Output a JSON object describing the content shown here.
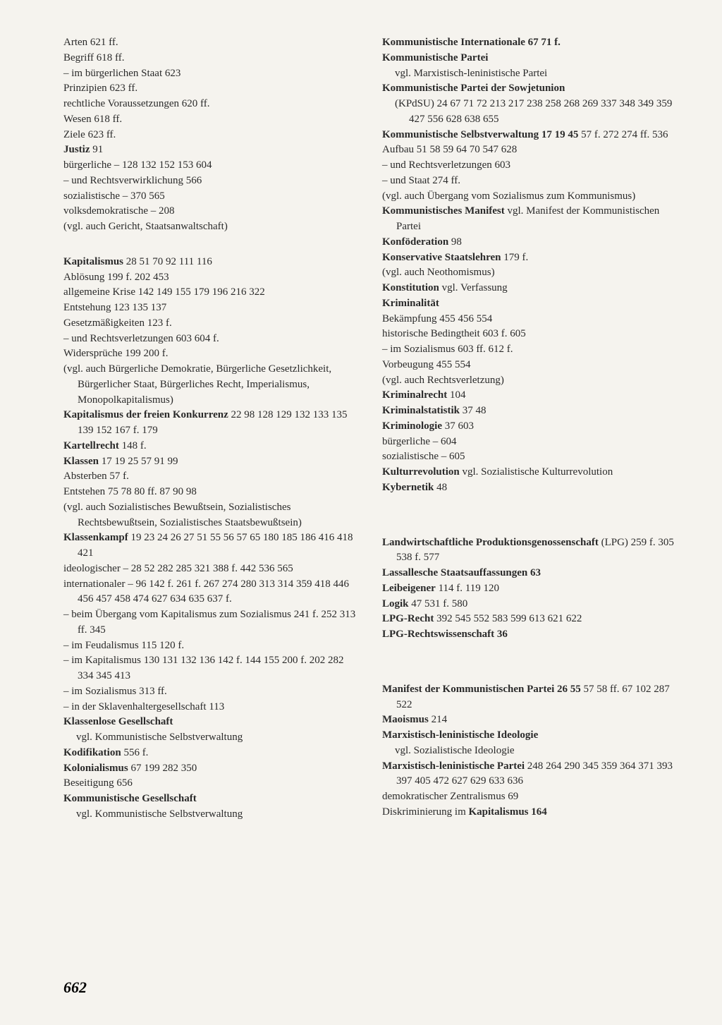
{
  "pageNumber": "662",
  "leftColumn": [
    {
      "type": "entry",
      "parts": [
        {
          "t": "Arten   621 ff."
        }
      ]
    },
    {
      "type": "entry",
      "parts": [
        {
          "t": "Begriff   618 ff."
        }
      ]
    },
    {
      "type": "entry",
      "parts": [
        {
          "t": "–  im bürgerlichen Staat   623"
        }
      ]
    },
    {
      "type": "entry",
      "parts": [
        {
          "t": "Prinzipien   623 ff."
        }
      ]
    },
    {
      "type": "entry",
      "parts": [
        {
          "t": "rechtliche Voraussetzungen   620 ff."
        }
      ]
    },
    {
      "type": "entry",
      "parts": [
        {
          "t": "Wesen   618 ff."
        }
      ]
    },
    {
      "type": "entry",
      "parts": [
        {
          "t": "Ziele   623 ff."
        }
      ]
    },
    {
      "type": "entry",
      "parts": [
        {
          "t": "Justiz",
          "b": true
        },
        {
          "t": "   91"
        }
      ]
    },
    {
      "type": "entry",
      "parts": [
        {
          "t": "bürgerliche  –   128 132 152 153 604"
        }
      ]
    },
    {
      "type": "entry",
      "parts": [
        {
          "t": "–  und Rechtsverwirklichung   566"
        }
      ]
    },
    {
      "type": "entry",
      "parts": [
        {
          "t": "sozialistische –   370 565"
        }
      ]
    },
    {
      "type": "entry",
      "parts": [
        {
          "t": "volksdemokratische –    208"
        }
      ]
    },
    {
      "type": "entry",
      "parts": [
        {
          "t": "(vgl. auch Gericht, Staatsanwaltschaft)"
        }
      ]
    },
    {
      "type": "gap"
    },
    {
      "type": "entry",
      "parts": [
        {
          "t": "Kapitalismus",
          "b": true
        },
        {
          "t": "   28 51 70 92 111 116"
        }
      ]
    },
    {
      "type": "entry",
      "parts": [
        {
          "t": "Ablösung   199 f. 202 453"
        }
      ]
    },
    {
      "type": "entry",
      "parts": [
        {
          "t": "allgemeine Krise   142 149 155 179 196 216 322"
        }
      ]
    },
    {
      "type": "entry",
      "parts": [
        {
          "t": "Entstehung   123 135 137"
        }
      ]
    },
    {
      "type": "entry",
      "parts": [
        {
          "t": "Gesetzmäßigkeiten   123 f."
        }
      ]
    },
    {
      "type": "entry",
      "parts": [
        {
          "t": "–  und Rechtsverletzungen   603 604 f."
        }
      ]
    },
    {
      "type": "entry",
      "parts": [
        {
          "t": "Widersprüche   199 200 f."
        }
      ]
    },
    {
      "type": "entry",
      "parts": [
        {
          "t": "(vgl. auch Bürgerliche Demokratie, Bürgerliche Gesetzlichkeit, Bürgerlicher Staat, Bürgerliches Recht, Imperialismus, Monopolkapitalismus)"
        }
      ]
    },
    {
      "type": "entry",
      "parts": [
        {
          "t": "Kapitalismus der freien Konkurrenz",
          "b": true
        },
        {
          "t": "   22 98 128 129 132 133 135 139 152 167 f. 179"
        }
      ]
    },
    {
      "type": "entry",
      "parts": [
        {
          "t": "Kartellrecht",
          "b": true
        },
        {
          "t": "   148 f."
        }
      ]
    },
    {
      "type": "entry",
      "parts": [
        {
          "t": "Klassen",
          "b": true
        },
        {
          "t": "   17 19 25 57 91 99"
        }
      ]
    },
    {
      "type": "entry",
      "parts": [
        {
          "t": "Absterben   57 f."
        }
      ]
    },
    {
      "type": "entry",
      "parts": [
        {
          "t": "Entstehen   75 78 80 ff. 87 90 98"
        }
      ]
    },
    {
      "type": "entry",
      "parts": [
        {
          "t": "(vgl. auch Sozialistisches Bewußtsein, Sozialistisches Rechtsbewußtsein, Sozialistisches Staatsbewußtsein)"
        }
      ]
    },
    {
      "type": "entry",
      "parts": [
        {
          "t": "Klassenkampf",
          "b": true
        },
        {
          "t": "   19 23 24 26 27 51 55 56 57 65 180 185 186 416 418 421"
        }
      ]
    },
    {
      "type": "entry",
      "parts": [
        {
          "t": "ideologischer –   28 52 282 285 321 388 f. 442 536 565"
        }
      ]
    },
    {
      "type": "entry",
      "parts": [
        {
          "t": "internationaler –   96 142 f. 261 f. 267 274 280 313 314 359 418 446 456 457 458 474 627 634 635 637 f."
        }
      ]
    },
    {
      "type": "entry",
      "parts": [
        {
          "t": "–  beim Übergang vom Kapitalismus zum Sozialismus   241 f. 252 313 ff. 345"
        }
      ]
    },
    {
      "type": "entry",
      "parts": [
        {
          "t": "–  im Feudalismus   115 120 f."
        }
      ]
    },
    {
      "type": "entry",
      "parts": [
        {
          "t": "–  im Kapitalismus   130 131 132 136 142 f. 144 155 200 f. 202 282 334 345 413"
        }
      ]
    },
    {
      "type": "entry",
      "parts": [
        {
          "t": "–  im Sozialismus   313 ff."
        }
      ]
    },
    {
      "type": "entry",
      "parts": [
        {
          "t": "–  in der Sklavenhaltergesellschaft   113"
        }
      ]
    },
    {
      "type": "entry",
      "parts": [
        {
          "t": "Klassenlose Gesellschaft",
          "b": true
        }
      ]
    },
    {
      "type": "sub",
      "parts": [
        {
          "t": "vgl. Kommunistische Selbstverwaltung"
        }
      ]
    },
    {
      "type": "entry",
      "parts": [
        {
          "t": "Kodifikation",
          "b": true
        },
        {
          "t": "   556 f."
        }
      ]
    },
    {
      "type": "entry",
      "parts": [
        {
          "t": "Kolonialismus",
          "b": true
        },
        {
          "t": "   67 199 282 350"
        }
      ]
    },
    {
      "type": "entry",
      "parts": [
        {
          "t": "Beseitigung   656"
        }
      ]
    },
    {
      "type": "entry",
      "parts": [
        {
          "t": "Kommunistische Gesellschaft",
          "b": true
        }
      ]
    },
    {
      "type": "sub",
      "parts": [
        {
          "t": "vgl. Kommunistische Selbstverwaltung"
        }
      ]
    }
  ],
  "rightColumn": [
    {
      "type": "entry",
      "parts": [
        {
          "t": "Kommunistische Internationale   67 71 f.",
          "b": true
        }
      ]
    },
    {
      "type": "entry",
      "parts": [
        {
          "t": "Kommunistische Partei",
          "b": true
        }
      ]
    },
    {
      "type": "sub",
      "parts": [
        {
          "t": "vgl. Marxistisch-leninistische Partei"
        }
      ]
    },
    {
      "type": "entry",
      "parts": [
        {
          "t": "Kommunistische Partei der Sowjetunion",
          "b": true
        }
      ]
    },
    {
      "type": "sub",
      "parts": [
        {
          "t": "(KPdSU)   24 67 71 72 213 217 238 258 268 269 337 348 349 359 427 556 628 638 655"
        }
      ]
    },
    {
      "type": "entry",
      "parts": [
        {
          "t": "Kommunistische Selbstverwaltung   17 19 45",
          "b": true
        },
        {
          "t": " 57 f. 272 274 ff. 536"
        }
      ]
    },
    {
      "type": "entry",
      "parts": [
        {
          "t": "Aufbau   51 58 59 64 70 547 628"
        }
      ]
    },
    {
      "type": "entry",
      "parts": [
        {
          "t": "–  und Rechtsverletzungen   603"
        }
      ]
    },
    {
      "type": "entry",
      "parts": [
        {
          "t": "–  und Staat   274 ff."
        }
      ]
    },
    {
      "type": "entry",
      "parts": [
        {
          "t": "(vgl. auch Übergang vom Sozialismus zum Kommunismus)"
        }
      ]
    },
    {
      "type": "entry",
      "parts": [
        {
          "t": "Kommunistisches Manifest",
          "b": true
        },
        {
          "t": " vgl. Manifest der Kommunistischen Partei"
        }
      ]
    },
    {
      "type": "entry",
      "parts": [
        {
          "t": "Konföderation",
          "b": true
        },
        {
          "t": "   98"
        }
      ]
    },
    {
      "type": "entry",
      "parts": [
        {
          "t": "Konservative Staatslehren",
          "b": true
        },
        {
          "t": "   179 f."
        }
      ]
    },
    {
      "type": "entry",
      "parts": [
        {
          "t": "(vgl. auch Neothomismus)"
        }
      ]
    },
    {
      "type": "entry",
      "parts": [
        {
          "t": "Konstitution",
          "b": true
        },
        {
          "t": " vgl. Verfassung"
        }
      ]
    },
    {
      "type": "entry",
      "parts": [
        {
          "t": "Kriminalität",
          "b": true
        }
      ]
    },
    {
      "type": "entry",
      "parts": [
        {
          "t": "Bekämpfung   455 456 554"
        }
      ]
    },
    {
      "type": "entry",
      "parts": [
        {
          "t": "historische Bedingtheit   603 f. 605"
        }
      ]
    },
    {
      "type": "entry",
      "parts": [
        {
          "t": "–  im Sozialismus   603 ff. 612 f."
        }
      ]
    },
    {
      "type": "entry",
      "parts": [
        {
          "t": "Vorbeugung   455 554"
        }
      ]
    },
    {
      "type": "entry",
      "parts": [
        {
          "t": "(vgl. auch Rechtsverletzung)"
        }
      ]
    },
    {
      "type": "entry",
      "parts": [
        {
          "t": "Kriminalrecht",
          "b": true
        },
        {
          "t": "   104"
        }
      ]
    },
    {
      "type": "entry",
      "parts": [
        {
          "t": "Kriminalstatistik",
          "b": true
        },
        {
          "t": "   37 48"
        }
      ]
    },
    {
      "type": "entry",
      "parts": [
        {
          "t": "Kriminologie",
          "b": true
        },
        {
          "t": "   37 603"
        }
      ]
    },
    {
      "type": "entry",
      "parts": [
        {
          "t": "bürgerliche –   604"
        }
      ]
    },
    {
      "type": "entry",
      "parts": [
        {
          "t": "sozialistische –   605"
        }
      ]
    },
    {
      "type": "entry",
      "parts": [
        {
          "t": "Kulturrevolution",
          "b": true
        },
        {
          "t": " vgl. Sozialistische Kulturrevolution"
        }
      ]
    },
    {
      "type": "entry",
      "parts": [
        {
          "t": "Kybernetik",
          "b": true
        },
        {
          "t": "   48"
        }
      ]
    },
    {
      "type": "gap"
    },
    {
      "type": "gap"
    },
    {
      "type": "entry",
      "parts": [
        {
          "t": "Landwirtschaftliche Produktionsgenossenschaft",
          "b": true
        },
        {
          "t": " (LPG)     259 f. 305 538 f. 577"
        }
      ]
    },
    {
      "type": "entry",
      "parts": [
        {
          "t": "Lassallesche Staatsauffassungen   63",
          "b": true
        }
      ]
    },
    {
      "type": "entry",
      "parts": [
        {
          "t": "Leibeigener",
          "b": true
        },
        {
          "t": "   114 f. 119 120"
        }
      ]
    },
    {
      "type": "entry",
      "parts": [
        {
          "t": "Logik",
          "b": true
        },
        {
          "t": "   47 531 f. 580"
        }
      ]
    },
    {
      "type": "entry",
      "parts": [
        {
          "t": "LPG-Recht",
          "b": true
        },
        {
          "t": "   392 545 552 583 599 613 621 622"
        }
      ]
    },
    {
      "type": "entry",
      "parts": [
        {
          "t": "LPG-Rechtswissenschaft   36",
          "b": true
        }
      ]
    },
    {
      "type": "gap"
    },
    {
      "type": "gap"
    },
    {
      "type": "entry",
      "parts": [
        {
          "t": "Manifest der Kommunistischen Partei   26 55",
          "b": true
        },
        {
          "t": " 57 58 ff. 67 102 287 522"
        }
      ]
    },
    {
      "type": "entry",
      "parts": [
        {
          "t": "Maoismus",
          "b": true
        },
        {
          "t": "   214"
        }
      ]
    },
    {
      "type": "entry",
      "parts": [
        {
          "t": "Marxistisch-leninistische Ideologie",
          "b": true
        }
      ]
    },
    {
      "type": "sub",
      "parts": [
        {
          "t": "vgl. Sozialistische Ideologie"
        }
      ]
    },
    {
      "type": "entry",
      "parts": [
        {
          "t": "Marxistisch-leninistische Partei",
          "b": true
        },
        {
          "t": "   248 264 290 345 359 364 371 393 397 405 472 627 629 633 636"
        }
      ]
    },
    {
      "type": "entry",
      "parts": [
        {
          "t": "demokratischer Zentralismus   69"
        }
      ]
    },
    {
      "type": "entry",
      "parts": [
        {
          "t": "Diskriminierung im "
        },
        {
          "t": "Kapitalismus   164",
          "b": true
        }
      ]
    }
  ]
}
